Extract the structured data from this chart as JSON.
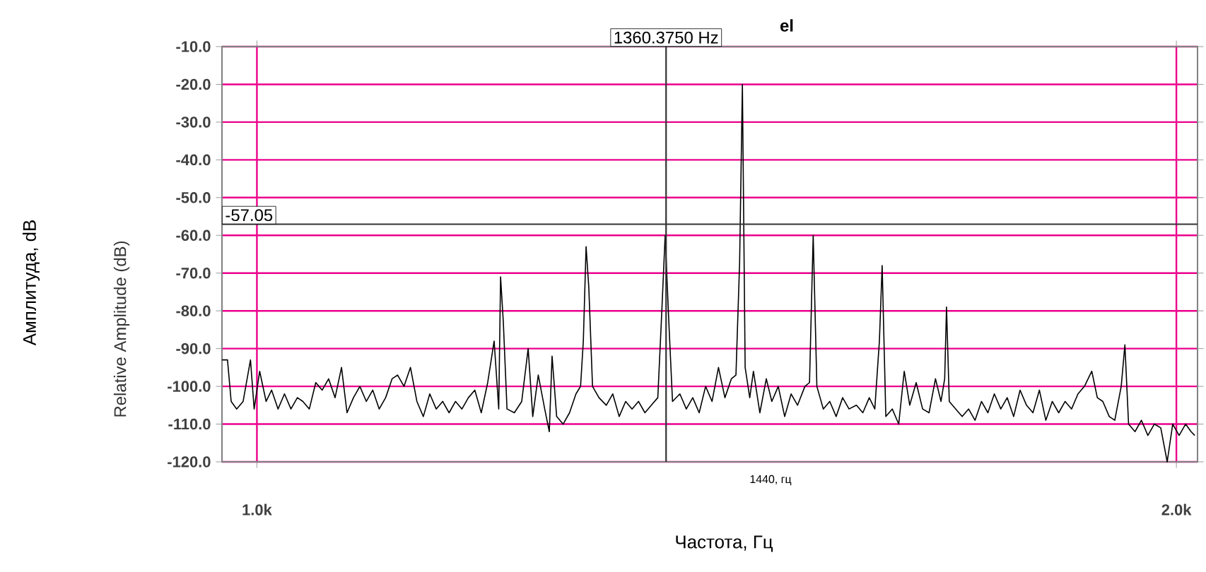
{
  "chart_data": {
    "type": "line",
    "title": "el",
    "ylabel": "Relative Amplitude (dB)",
    "xlabel": "Частота, Гц",
    "annotations": [
      "Амплитуда, dB",
      "1440, гц"
    ],
    "xlim": [
      962,
      2023
    ],
    "ylim": [
      -120,
      -10
    ],
    "xticks": [
      {
        "value": 1000,
        "label": "1.0k"
      },
      {
        "value": 2000,
        "label": "2.0k"
      }
    ],
    "yticks": [
      {
        "value": -10,
        "label": "-10.0"
      },
      {
        "value": -20,
        "label": "-20.0"
      },
      {
        "value": -30,
        "label": "-30.0"
      },
      {
        "value": -40,
        "label": "-40.0"
      },
      {
        "value": -50,
        "label": "-50.0"
      },
      {
        "value": -60,
        "label": "-60.0"
      },
      {
        "value": -70,
        "label": "-70.0"
      },
      {
        "value": -80,
        "label": "-80.0"
      },
      {
        "value": -90,
        "label": "-90.0"
      },
      {
        "value": -100,
        "label": "-100.0"
      },
      {
        "value": -110,
        "label": "-110.0"
      },
      {
        "value": -120,
        "label": "-120.0"
      }
    ],
    "grid": true,
    "line_style": "solid",
    "marker": "none",
    "ref_lines": [
      {
        "axis": "x",
        "value": 1445,
        "label": "1360.3750 Hz",
        "color": "#333333"
      },
      {
        "axis": "y",
        "value": -57.05,
        "label": "-57.05",
        "color": "#333333"
      }
    ],
    "series": [
      {
        "color": "#000000",
        "x": [
          962,
          968,
          972,
          978,
          985,
          993,
          997,
          1003,
          1010,
          1016,
          1023,
          1030,
          1037,
          1044,
          1050,
          1057,
          1064,
          1071,
          1078,
          1085,
          1092,
          1098,
          1105,
          1112,
          1119,
          1126,
          1133,
          1140,
          1147,
          1153,
          1160,
          1167,
          1174,
          1181,
          1188,
          1195,
          1202,
          1209,
          1216,
          1223,
          1230,
          1237,
          1244,
          1251,
          1258,
          1263,
          1265,
          1268,
          1272,
          1280,
          1288,
          1295,
          1300,
          1306,
          1313,
          1318,
          1321,
          1326,
          1333,
          1340,
          1347,
          1352,
          1355,
          1358,
          1361,
          1365,
          1372,
          1380,
          1387,
          1394,
          1401,
          1408,
          1415,
          1422,
          1429,
          1436,
          1440,
          1444,
          1448,
          1452,
          1460,
          1467,
          1474,
          1481,
          1488,
          1495,
          1502,
          1509,
          1516,
          1521,
          1525,
          1528,
          1531,
          1536,
          1540,
          1547,
          1554,
          1560,
          1567,
          1574,
          1581,
          1588,
          1596,
          1601,
          1605,
          1609,
          1616,
          1623,
          1630,
          1637,
          1644,
          1652,
          1659,
          1666,
          1672,
          1677,
          1680,
          1684,
          1691,
          1698,
          1704,
          1710,
          1717,
          1724,
          1731,
          1738,
          1744,
          1748,
          1750,
          1753,
          1760,
          1767,
          1774,
          1781,
          1788,
          1795,
          1802,
          1809,
          1816,
          1823,
          1830,
          1837,
          1844,
          1851,
          1858,
          1865,
          1872,
          1879,
          1886,
          1893,
          1900,
          1908,
          1914,
          1920,
          1927,
          1933,
          1940,
          1944,
          1948,
          1955,
          1962,
          1969,
          1976,
          1983,
          1990,
          1996,
          2003,
          2010,
          2016,
          2020
        ],
        "values": [
          -93,
          -93,
          -104,
          -106,
          -104,
          -93,
          -106,
          -96,
          -104,
          -101,
          -106,
          -102,
          -106,
          -103,
          -104,
          -106,
          -99,
          -101,
          -98,
          -103,
          -95,
          -107,
          -103,
          -100,
          -104,
          -101,
          -106,
          -103,
          -98,
          -97,
          -100,
          -95,
          -104,
          -108,
          -102,
          -106,
          -104,
          -107,
          -104,
          -106,
          -103,
          -101,
          -107,
          -99,
          -88,
          -106,
          -71,
          -83,
          -106,
          -107,
          -104,
          -90,
          -108,
          -97,
          -106,
          -112,
          -92,
          -108,
          -110,
          -107,
          -102,
          -100,
          -88,
          -63,
          -74,
          -100,
          -103,
          -105,
          -102,
          -108,
          -104,
          -106,
          -104,
          -107,
          -105,
          -103,
          -82,
          -60,
          -83,
          -104,
          -102,
          -106,
          -103,
          -107,
          -100,
          -104,
          -95,
          -103,
          -98,
          -97,
          -67,
          -20,
          -95,
          -103,
          -96,
          -107,
          -98,
          -104,
          -100,
          -108,
          -102,
          -105,
          -100,
          -99,
          -60,
          -100,
          -106,
          -104,
          -108,
          -103,
          -106,
          -105,
          -107,
          -103,
          -106,
          -88,
          -68,
          -108,
          -106,
          -110,
          -96,
          -105,
          -99,
          -106,
          -107,
          -98,
          -104,
          -98,
          -79,
          -104,
          -106,
          -108,
          -106,
          -109,
          -104,
          -107,
          -102,
          -106,
          -103,
          -108,
          -101,
          -105,
          -107,
          -101,
          -109,
          -104,
          -107,
          -104,
          -106,
          -102,
          -100,
          -96,
          -103,
          -104,
          -108,
          -109,
          -100,
          -89,
          -110,
          -112,
          -109,
          -113,
          -110,
          -111,
          -120,
          -110,
          -113,
          -110,
          -112,
          -113
        ]
      }
    ]
  }
}
